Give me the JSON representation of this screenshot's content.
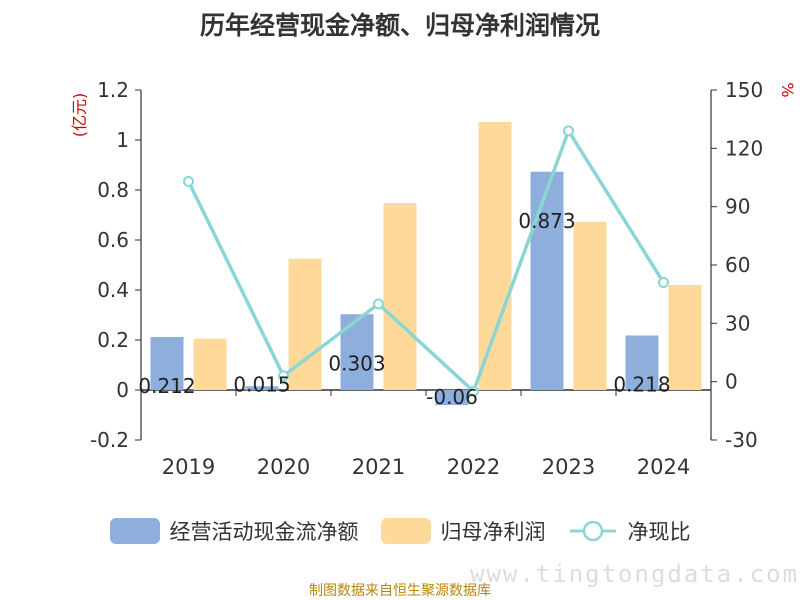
{
  "title": "历年经营现金净额、归母净利润情况",
  "chart_data": {
    "type": "bar",
    "categories": [
      "2019",
      "2020",
      "2021",
      "2022",
      "2023",
      "2024"
    ],
    "series": [
      {
        "name": "经营活动现金流净额",
        "type": "bar",
        "axis": "left",
        "color": "#8eaedb",
        "values": [
          0.212,
          0.015,
          0.303,
          -0.06,
          0.873,
          0.218
        ],
        "labels": [
          "0.212",
          "0.015",
          "0.303",
          "-0.06",
          "0.873",
          "0.218"
        ]
      },
      {
        "name": "归母净利润",
        "type": "bar",
        "axis": "left",
        "color": "#ffd999",
        "values": [
          0.205,
          0.525,
          0.748,
          1.072,
          0.673,
          0.42
        ]
      },
      {
        "name": "净现比",
        "type": "line",
        "axis": "right",
        "color": "#8ad6d6",
        "values": [
          103,
          3,
          40,
          -5,
          129,
          51
        ]
      }
    ],
    "left_axis": {
      "label": "(亿元)",
      "min": -0.2,
      "max": 1.2,
      "ticks": [
        -0.2,
        0,
        0.2,
        0.4,
        0.6,
        0.8,
        1,
        1.2
      ],
      "tick_labels": [
        "-0.2",
        "0",
        "0.2",
        "0.4",
        "0.6",
        "0.8",
        "1",
        "1.2"
      ]
    },
    "right_axis": {
      "label": "%",
      "min": -30,
      "max": 150,
      "ticks": [
        -30,
        0,
        30,
        60,
        90,
        120,
        150
      ],
      "tick_labels": [
        "-30",
        "0",
        "30",
        "60",
        "90",
        "120",
        "150"
      ]
    },
    "legend_position": "bottom",
    "grid": false
  },
  "legend": [
    {
      "label": "经营活动现金流净额",
      "icon": "bar-swatch",
      "color": "#8eaedb"
    },
    {
      "label": "归母净利润",
      "icon": "bar-swatch",
      "color": "#ffd999"
    },
    {
      "label": "净现比",
      "icon": "line-circle",
      "color": "#8ad6d6"
    }
  ],
  "footer": "制图数据来自恒生聚源数据库",
  "watermark": "www.tingtongdata.com"
}
